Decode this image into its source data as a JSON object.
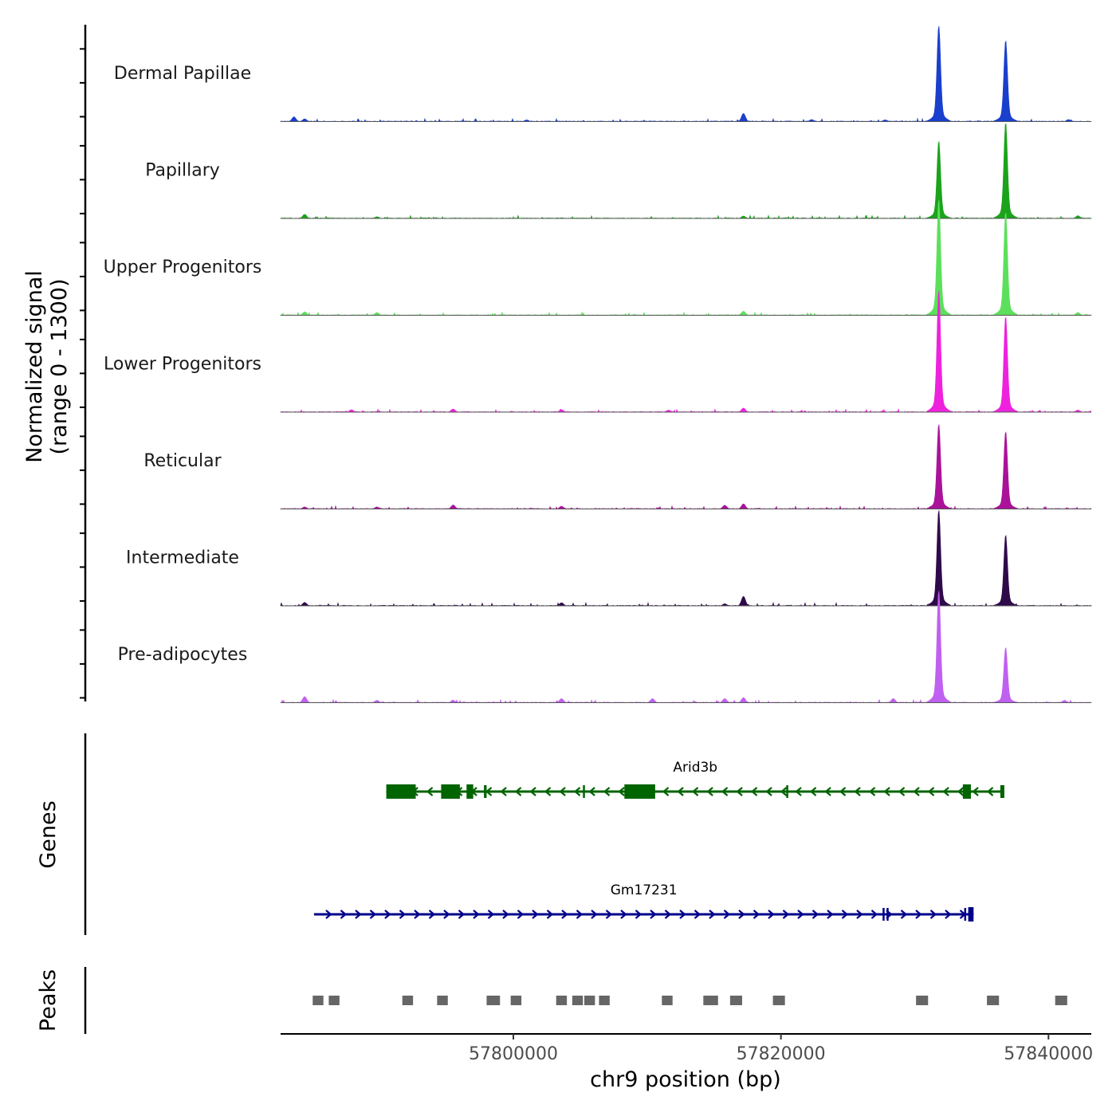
{
  "chart_data": {
    "type": "area",
    "title": "",
    "chromosome": "chr9",
    "xlabel": "chr9 position (bp)",
    "xlim": [
      57782600,
      57843200
    ],
    "x_ticks": [
      57800000,
      57820000,
      57840000
    ],
    "x_tick_labels": [
      "57800000",
      "57820000",
      "57840000"
    ],
    "coverage_panel": {
      "ylabel_line1": "Normalized signal",
      "ylabel_line2": "(range 0 - 1300)",
      "ylim": [
        0,
        1300
      ],
      "tracks": [
        {
          "name": "Dermal Papillae",
          "color": "#1a3fcc",
          "peaks": [
            [
              57783600,
              70
            ],
            [
              57784400,
              40
            ],
            [
              57801000,
              25
            ],
            [
              57817200,
              120
            ],
            [
              57822300,
              30
            ],
            [
              57827800,
              25
            ],
            [
              57831800,
              1300
            ],
            [
              57836800,
              1100
            ],
            [
              57841500,
              30
            ]
          ]
        },
        {
          "name": "Papillary",
          "color": "#1ba31b",
          "peaks": [
            [
              57784400,
              60
            ],
            [
              57789800,
              25
            ],
            [
              57817200,
              35
            ],
            [
              57831800,
              1050
            ],
            [
              57836800,
              1300
            ],
            [
              57842200,
              40
            ]
          ]
        },
        {
          "name": "Upper Progenitors",
          "color": "#5ce05c",
          "peaks": [
            [
              57784400,
              50
            ],
            [
              57789800,
              40
            ],
            [
              57817200,
              60
            ],
            [
              57831800,
              1570
            ],
            [
              57836800,
              1400
            ],
            [
              57842200,
              40
            ]
          ]
        },
        {
          "name": "Lower Progenitors",
          "color": "#ee22dd",
          "peaks": [
            [
              57787900,
              35
            ],
            [
              57795500,
              45
            ],
            [
              57803600,
              35
            ],
            [
              57811600,
              30
            ],
            [
              57817200,
              60
            ],
            [
              57831800,
              1650
            ],
            [
              57836800,
              1300
            ],
            [
              57842200,
              30
            ]
          ]
        },
        {
          "name": "Reticular",
          "color": "#aa1299",
          "peaks": [
            [
              57784400,
              30
            ],
            [
              57789800,
              30
            ],
            [
              57795500,
              60
            ],
            [
              57803600,
              40
            ],
            [
              57815800,
              55
            ],
            [
              57817200,
              75
            ],
            [
              57831800,
              1150
            ],
            [
              57836800,
              1050
            ]
          ]
        },
        {
          "name": "Intermediate",
          "color": "#2f0a4a",
          "peaks": [
            [
              57784400,
              50
            ],
            [
              57803600,
              45
            ],
            [
              57815800,
              30
            ],
            [
              57817200,
              140
            ],
            [
              57831800,
              1300
            ],
            [
              57836800,
              960
            ]
          ]
        },
        {
          "name": "Pre-adipocytes",
          "color": "#c060f0",
          "peaks": [
            [
              57784400,
              90
            ],
            [
              57789800,
              35
            ],
            [
              57795500,
              35
            ],
            [
              57803600,
              60
            ],
            [
              57810400,
              60
            ],
            [
              57815800,
              60
            ],
            [
              57817200,
              75
            ],
            [
              57828400,
              60
            ],
            [
              57831800,
              1520
            ],
            [
              57836800,
              750
            ],
            [
              57841200,
              35
            ]
          ]
        }
      ]
    },
    "genes_panel": {
      "ylabel": "Genes",
      "genes": [
        {
          "name": "Arid3b",
          "strand": "-",
          "color": "#006400",
          "start": 57790500,
          "end": 57836700,
          "exons": [
            [
              57790500,
              57792700
            ],
            [
              57794600,
              57796000
            ],
            [
              57796500,
              57797000
            ],
            [
              57797800,
              57798000
            ],
            [
              57805200,
              57805300
            ],
            [
              57808300,
              57810600
            ],
            [
              57820400,
              57820500
            ],
            [
              57833600,
              57834200
            ],
            [
              57836400,
              57836700
            ]
          ]
        },
        {
          "name": "Gm17231",
          "strand": "+",
          "color": "#00008b",
          "start": 57785100,
          "end": 57834400,
          "exons": [
            [
              57827600,
              57827700
            ],
            [
              57827900,
              57828000
            ],
            [
              57833700,
              57833800
            ],
            [
              57834000,
              57834400
            ]
          ]
        }
      ]
    },
    "peaks_panel": {
      "ylabel": "Peaks",
      "color": "#666666",
      "regions": [
        [
          57785000,
          57785800
        ],
        [
          57786200,
          57787000
        ],
        [
          57791700,
          57792500
        ],
        [
          57794300,
          57795100
        ],
        [
          57798000,
          57799000
        ],
        [
          57799800,
          57800600
        ],
        [
          57803200,
          57804000
        ],
        [
          57804400,
          57805200
        ],
        [
          57805300,
          57806100
        ],
        [
          57806400,
          57807200
        ],
        [
          57811100,
          57811900
        ],
        [
          57814200,
          57815300
        ],
        [
          57816200,
          57817100
        ],
        [
          57819400,
          57820300
        ],
        [
          57830100,
          57831000
        ],
        [
          57835400,
          57836300
        ],
        [
          57840500,
          57841400
        ]
      ]
    }
  }
}
